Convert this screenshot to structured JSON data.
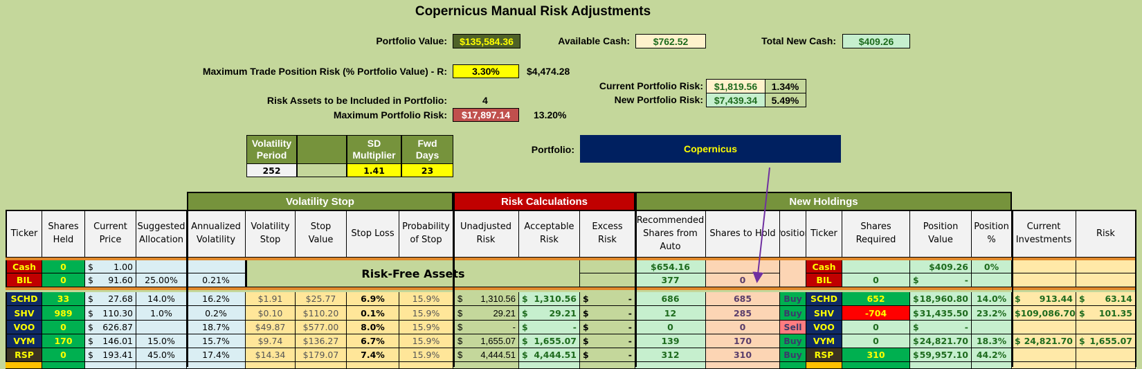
{
  "title": "Copernicus Manual Risk Adjustments",
  "summary": {
    "portfolio_value_label": "Portfolio Value:",
    "portfolio_value": "$135,584.36",
    "available_cash_label": "Available Cash:",
    "available_cash": "$762.52",
    "total_new_cash_label": "Total New Cash:",
    "total_new_cash": "$409.26",
    "max_trade_risk_label": "Maximum Trade Position Risk (% Portfolio Value) - R:",
    "max_trade_risk_pct": "3.30%",
    "max_trade_risk_value": "$4,474.28",
    "current_risk_label": "Current Portfolio Risk:",
    "current_risk_value": "$1,819.56",
    "current_risk_pct": "1.34%",
    "new_risk_label": "New Portfolio Risk:",
    "new_risk_value": "$7,439.34",
    "new_risk_pct": "5.49%",
    "risk_assets_label": "Risk Assets to be Included in Portfolio:",
    "risk_assets_count": "4",
    "max_portfolio_risk_label": "Maximum Portfolio Risk:",
    "max_portfolio_risk_value": "$17,897.14",
    "max_portfolio_risk_pct": "13.20%",
    "portfolio_label": "Portfolio:",
    "portfolio_name": "Copernicus"
  },
  "params": {
    "headers": [
      "Volatility Period",
      "",
      "SD Multiplier",
      "Fwd Days"
    ],
    "values": [
      "252",
      "",
      "1.41",
      "23"
    ]
  },
  "sections": {
    "volatility_stop": "Volatility Stop",
    "risk_calculations": "Risk Calculations",
    "new_holdings": "New Holdings",
    "risk_free_assets": "Risk-Free Assets"
  },
  "columns": [
    "Ticker",
    "Shares Held",
    "Current Price",
    "Suggested Allocation",
    "Annualized Volatility",
    "Volatility Stop",
    "Stop Value",
    "Stop Loss",
    "Probability of Stop",
    "Unadjusted Risk",
    "Acceptable Risk",
    "Excess Risk",
    "Recommended Shares from Auto",
    "Shares to Hold",
    "Position",
    "Ticker",
    "Shares Required",
    "Position Value",
    "Position %",
    "Current Investments",
    "Risk"
  ],
  "risk_free_rows": [
    {
      "ticker": "Cash",
      "shares_held": "0",
      "price": "$ 1.00",
      "alloc": "",
      "ann_vol": "",
      "recommended": "$654.16",
      "shares_to_hold": "",
      "ticker2": "Cash",
      "shares_req": "",
      "pos_value": "$409.26",
      "pos_pct": "0%",
      "cur_inv": "",
      "risk": ""
    },
    {
      "ticker": "BIL",
      "shares_held": "0",
      "price": "$ 91.60",
      "alloc": "25.00%",
      "ann_vol": "0.21%",
      "recommended": "377",
      "shares_to_hold": "0",
      "ticker2": "BIL",
      "shares_req": "0",
      "pos_value": "$ -",
      "pos_pct": "",
      "cur_inv": "",
      "risk": ""
    }
  ],
  "rows": [
    {
      "ticker": "SCHD",
      "shares_held": "33",
      "price": "$ 27.68",
      "alloc": "14.0%",
      "ann_vol": "16.2%",
      "vol_stop": "$1.91",
      "stop_value": "$25.77",
      "stop_loss": "6.9%",
      "prob_stop": "15.9%",
      "unadj": "$ 1,310.56",
      "acceptable": "$ 1,310.56",
      "excess": "$ -",
      "recommended": "686",
      "shares_to_hold": "685",
      "position": "Buy",
      "ticker2": "SCHD",
      "shares_req": "652",
      "pos_value": "$ 18,960.80",
      "pos_pct": "14.0%",
      "cur_inv": "$ 913.44",
      "risk": "$ 63.14"
    },
    {
      "ticker": "SHV",
      "shares_held": "989",
      "price": "$ 110.30",
      "alloc": "1.0%",
      "ann_vol": "0.2%",
      "vol_stop": "$0.10",
      "stop_value": "$110.20",
      "stop_loss": "0.1%",
      "prob_stop": "15.9%",
      "unadj": "$ 29.21",
      "acceptable": "$ 29.21",
      "excess": "$ -",
      "recommended": "12",
      "shares_to_hold": "285",
      "position": "Buy",
      "ticker2": "SHV",
      "shares_req": "-704",
      "pos_value": "$ 31,435.50",
      "pos_pct": "23.2%",
      "cur_inv": "$ 109,086.70",
      "risk": "$ 101.35"
    },
    {
      "ticker": "VOO",
      "shares_held": "0",
      "price": "$ 626.87",
      "alloc": "",
      "ann_vol": "18.7%",
      "vol_stop": "$49.87",
      "stop_value": "$577.00",
      "stop_loss": "8.0%",
      "prob_stop": "15.9%",
      "unadj": "$ -",
      "acceptable": "$ -",
      "excess": "$ -",
      "recommended": "0",
      "shares_to_hold": "0",
      "position": "Sell",
      "ticker2": "VOO",
      "shares_req": "0",
      "pos_value": "$ -",
      "pos_pct": "",
      "cur_inv": "",
      "risk": ""
    },
    {
      "ticker": "VYM",
      "shares_held": "170",
      "price": "$ 146.01",
      "alloc": "15.0%",
      "ann_vol": "15.7%",
      "vol_stop": "$9.74",
      "stop_value": "$136.27",
      "stop_loss": "6.7%",
      "prob_stop": "15.9%",
      "unadj": "$ 1,655.07",
      "acceptable": "$ 1,655.07",
      "excess": "$ -",
      "recommended": "139",
      "shares_to_hold": "170",
      "position": "Buy",
      "ticker2": "VYM",
      "shares_req": "0",
      "pos_value": "$ 24,821.70",
      "pos_pct": "18.3%",
      "cur_inv": "$ 24,821.70",
      "risk": "$ 1,655.07"
    },
    {
      "ticker": "RSP",
      "shares_held": "0",
      "price": "$ 193.41",
      "alloc": "45.0%",
      "ann_vol": "17.4%",
      "vol_stop": "$14.34",
      "stop_value": "$179.07",
      "stop_loss": "7.4%",
      "prob_stop": "15.9%",
      "unadj": "$ 4,444.51",
      "acceptable": "$ 4,444.51",
      "excess": "$ -",
      "recommended": "312",
      "shares_to_hold": "310",
      "position": "Buy",
      "ticker2": "RSP",
      "shares_req": "310",
      "pos_value": "$ 59,957.10",
      "pos_pct": "44.2%",
      "cur_inv": "",
      "risk": ""
    }
  ],
  "colors": {
    "background": "#c4d79b",
    "section_green": "#76933c",
    "section_red": "#c00000",
    "ticker_navy": "#0f2a66",
    "buy": "#00b050",
    "sell": "#ff7c80",
    "negative": "#ff0000",
    "arrow": "#7030a0"
  }
}
